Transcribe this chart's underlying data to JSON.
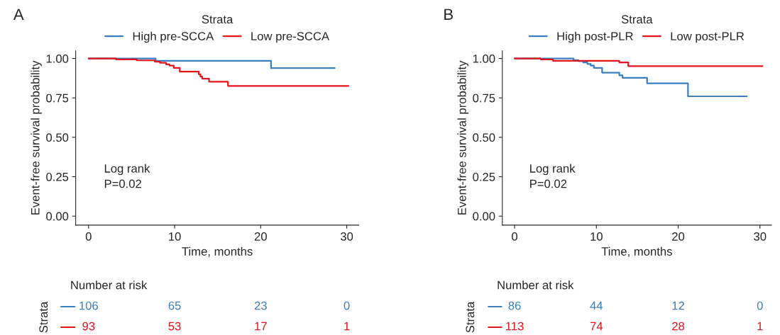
{
  "chart_data": [
    {
      "type": "step",
      "title": "A",
      "xlabel": "Time, months",
      "ylabel": "Event-free survival probability",
      "legend_title": "Strata",
      "legend": "top",
      "xlim": [
        -1.5,
        31.4
      ],
      "ylim": [
        -0.057,
        1.048
      ],
      "xticks": [
        0,
        10,
        20,
        30
      ],
      "yticks": [
        {
          "value": 0,
          "label": "0.00"
        },
        {
          "value": 0.25,
          "label": "0.25"
        },
        {
          "value": 0.5,
          "label": "0.50"
        },
        {
          "value": 0.75,
          "label": "0.75"
        },
        {
          "value": 1,
          "label": "1.00"
        }
      ],
      "grid": false,
      "series": [
        {
          "name": "High pre-SCCA",
          "color": "#3a7fc1",
          "x": [
            0,
            7.8,
            21.2,
            28.6
          ],
          "values": [
            1.0,
            0.985,
            0.939,
            0.939
          ]
        },
        {
          "name": "Low pre-SCCA",
          "color": "#e3141b",
          "x": [
            0,
            3.2,
            5.6,
            7.7,
            8.3,
            9.0,
            9.4,
            9.9,
            10.6,
            12.8,
            13.0,
            13.2,
            14.0,
            16.2,
            30.2
          ],
          "values": [
            1.0,
            0.994,
            0.988,
            0.98,
            0.973,
            0.963,
            0.955,
            0.94,
            0.917,
            0.9,
            0.885,
            0.872,
            0.853,
            0.826,
            0.826
          ]
        }
      ],
      "annotations": [
        "Log rank\nP=0.02",
        "Number at risk",
        "Strata",
        "106",
        "65",
        "23",
        "0",
        "93",
        "53",
        "17",
        "1"
      ]
    },
    {
      "type": "step",
      "title": "B",
      "xlabel": "Time, months",
      "ylabel": "Event-free survival probability",
      "legend_title": "Strata",
      "legend": "top",
      "xlim": [
        -1.5,
        31.4
      ],
      "ylim": [
        -0.057,
        1.048
      ],
      "xticks": [
        0,
        10,
        20,
        30
      ],
      "yticks": [
        {
          "value": 0,
          "label": "0.00"
        },
        {
          "value": 0.25,
          "label": "0.25"
        },
        {
          "value": 0.5,
          "label": "0.50"
        },
        {
          "value": 0.75,
          "label": "0.75"
        },
        {
          "value": 1,
          "label": "1.00"
        }
      ],
      "grid": false,
      "series": [
        {
          "name": "High post-PLR",
          "color": "#3a7fc1",
          "x": [
            0,
            7.2,
            7.8,
            8.4,
            8.9,
            9.3,
            9.7,
            10.7,
            12.8,
            13.2,
            16.2,
            21.2,
            28.4
          ],
          "values": [
            1.0,
            0.99,
            0.983,
            0.975,
            0.965,
            0.955,
            0.94,
            0.91,
            0.893,
            0.877,
            0.843,
            0.76,
            0.76
          ]
        },
        {
          "name": "Low post-PLR",
          "color": "#e3141b",
          "x": [
            0,
            3.2,
            4.7,
            12.8,
            13.9,
            30.3
          ],
          "values": [
            1.0,
            0.994,
            0.985,
            0.975,
            0.952,
            0.952
          ]
        }
      ],
      "annotations": [
        "Log rank\nP=0.02",
        "Number at risk",
        "Strata",
        "86",
        "44",
        "12",
        "0",
        "113",
        "74",
        "28",
        "1"
      ]
    }
  ]
}
